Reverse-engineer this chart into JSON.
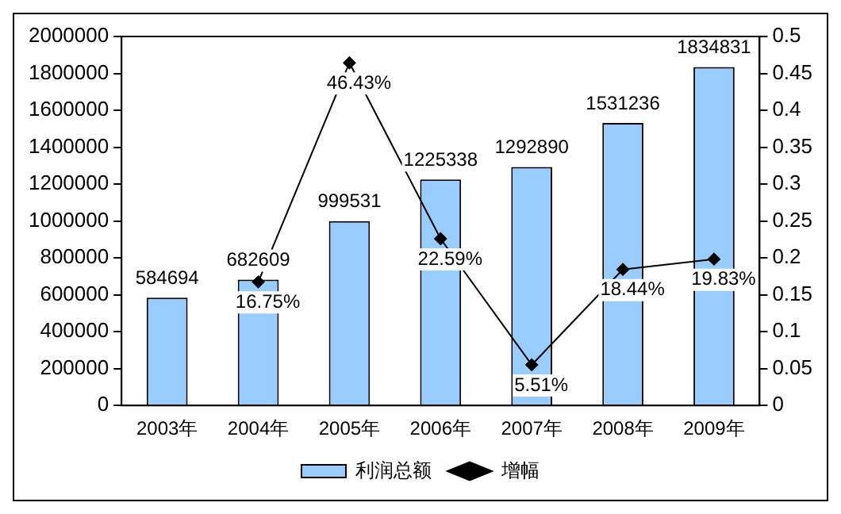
{
  "chart_data": {
    "type": "bar",
    "categories": [
      "2003年",
      "2004年",
      "2005年",
      "2006年",
      "2007年",
      "2008年",
      "2009年"
    ],
    "series": [
      {
        "name": "利润总额",
        "color": "#99ccff",
        "values": [
          584694,
          682609,
          999531,
          1225338,
          1292890,
          1531236,
          1834831
        ],
        "value_labels": [
          "584694",
          "682609",
          "999531",
          "1225338",
          "1292890",
          "1531236",
          "1834831"
        ]
      },
      {
        "name": "增幅",
        "type": "line",
        "axis": "y2",
        "color": "#000000",
        "marker": "diamond",
        "values": [
          null,
          0.1675,
          0.4643,
          0.2259,
          0.0551,
          0.1844,
          0.1983
        ],
        "value_labels": [
          null,
          "16.75%",
          "46.43%",
          "22.59%",
          "5.51%",
          "18.44%",
          "19.83%"
        ]
      }
    ],
    "ylim": [
      0,
      2000000
    ],
    "yticks": [
      0,
      200000,
      400000,
      600000,
      800000,
      1000000,
      1200000,
      1400000,
      1600000,
      1800000,
      2000000
    ],
    "y2lim": [
      0,
      0.5
    ],
    "y2ticks": [
      0,
      0.05,
      0.1,
      0.15,
      0.2,
      0.25,
      0.3,
      0.35,
      0.4,
      0.45,
      0.5
    ],
    "grid": false,
    "legend": "bottom"
  }
}
